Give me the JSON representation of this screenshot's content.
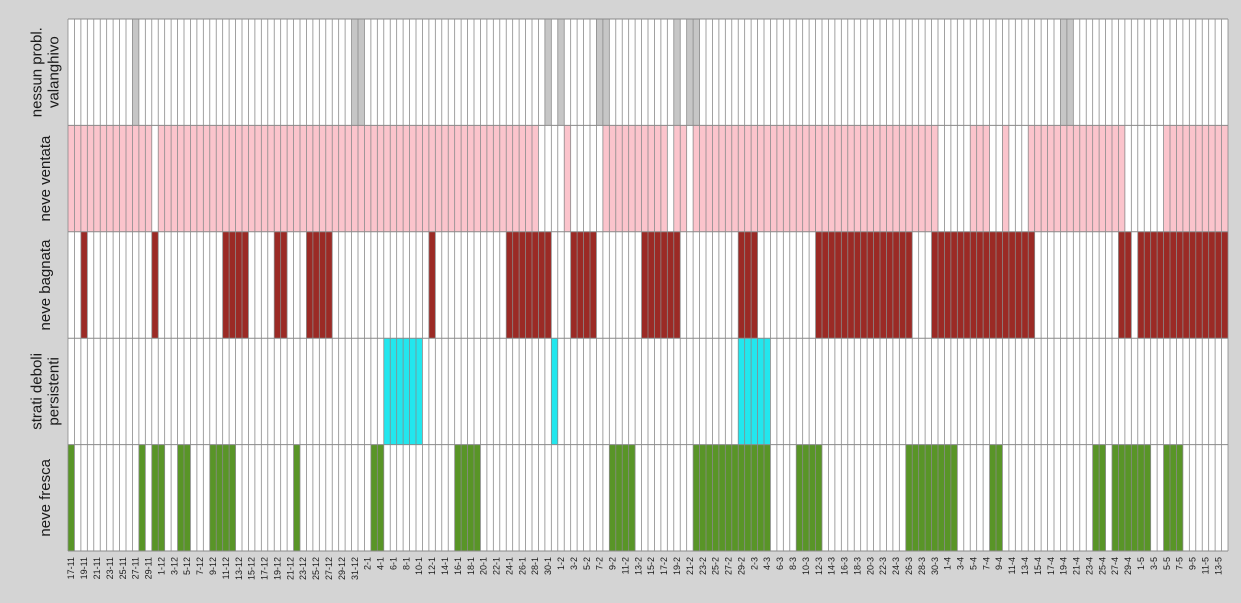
{
  "chart_data": {
    "type": "heatmap",
    "rows": [
      {
        "name": "nessun probl. valanghivo",
        "label_lines": [
          "nessun probl.",
          "valanghivo"
        ],
        "color": "#c6c6c6"
      },
      {
        "name": "neve ventata",
        "label_lines": [
          "neve ventata"
        ],
        "color": "#fbc4cc"
      },
      {
        "name": "neve bagnata",
        "label_lines": [
          "neve bagnata"
        ],
        "color": "#9b2a25"
      },
      {
        "name": "strati deboli persistenti",
        "label_lines": [
          "strati deboli",
          "persistenti"
        ],
        "color": "#22e7ee"
      },
      {
        "name": "neve fresca",
        "label_lines": [
          "neve fresca"
        ],
        "color": "#599527"
      }
    ],
    "start_date": "17-11",
    "end_date": "14-5",
    "tick_labels": [
      "17-11",
      "19-11",
      "21-11",
      "23-11",
      "25-11",
      "27-11",
      "29-11",
      "1-12",
      "3-12",
      "5-12",
      "7-12",
      "9-12",
      "11-12",
      "13-12",
      "15-12",
      "17-12",
      "19-12",
      "21-12",
      "23-12",
      "25-12",
      "27-12",
      "29-12",
      "31-12",
      "2-1",
      "4-1",
      "6-1",
      "8-1",
      "10-1",
      "12-1",
      "14-1",
      "16-1",
      "18-1",
      "20-1",
      "22-1",
      "24-1",
      "26-1",
      "28-1",
      "30-1",
      "1-2",
      "3-2",
      "5-2",
      "7-2",
      "9-2",
      "11-2",
      "13-2",
      "15-2",
      "17-2",
      "19-2",
      "21-2",
      "23-2",
      "25-2",
      "27-2",
      "29-2",
      "2-3",
      "4-3",
      "6-3",
      "8-3",
      "10-3",
      "12-3",
      "14-3",
      "16-3",
      "18-3",
      "20-3",
      "22-3",
      "24-3",
      "26-3",
      "28-3",
      "30-3",
      "1-4",
      "3-4",
      "5-4",
      "7-4",
      "9-4",
      "11-4",
      "13-4",
      "15-4",
      "17-4",
      "19-4",
      "21-4",
      "23-4",
      "25-4",
      "27-4",
      "29-4",
      "1-5",
      "3-5",
      "5-5",
      "7-5",
      "9-5",
      "11-5",
      "13-5"
    ],
    "active_periods": [
      [
        [
          "27-11",
          "27-11"
        ],
        [
          "31-12",
          "1-1"
        ],
        [
          "30-1",
          "30-1"
        ],
        [
          "1-2",
          "1-2"
        ],
        [
          "7-2",
          "8-2"
        ],
        [
          "19-2",
          "19-2"
        ],
        [
          "21-2",
          "22-2"
        ],
        [
          "19-4",
          "20-4"
        ]
      ],
      [
        [
          "17-11",
          "29-11"
        ],
        [
          "1-12",
          "28-1"
        ],
        [
          "2-2",
          "2-2"
        ],
        [
          "8-2",
          "17-2"
        ],
        [
          "19-2",
          "20-2"
        ],
        [
          "22-2",
          "1-3"
        ],
        [
          "2-3",
          "30-3"
        ],
        [
          "5-4",
          "7-4"
        ],
        [
          "10-4",
          "10-4"
        ],
        [
          "14-4",
          "28-4"
        ],
        [
          "5-5",
          "14-5"
        ]
      ],
      [
        [
          "19-11",
          "19-11"
        ],
        [
          "30-11",
          "30-11"
        ],
        [
          "11-12",
          "14-12"
        ],
        [
          "19-12",
          "20-12"
        ],
        [
          "24-12",
          "27-12"
        ],
        [
          "12-1",
          "12-1"
        ],
        [
          "24-1",
          "30-1"
        ],
        [
          "3-2",
          "6-2"
        ],
        [
          "14-2",
          "19-2"
        ],
        [
          "29-2",
          "2-3"
        ],
        [
          "12-3",
          "26-3"
        ],
        [
          "30-3",
          "14-4"
        ],
        [
          "28-4",
          "29-4"
        ],
        [
          "1-5",
          "14-5"
        ]
      ],
      [
        [
          "5-1",
          "10-1"
        ],
        [
          "31-1",
          "31-1"
        ],
        [
          "29-2",
          "4-3"
        ]
      ],
      [
        [
          "17-11",
          "17-11"
        ],
        [
          "28-11",
          "28-11"
        ],
        [
          "30-11",
          "1-12"
        ],
        [
          "4-12",
          "5-12"
        ],
        [
          "9-12",
          "12-12"
        ],
        [
          "22-12",
          "22-12"
        ],
        [
          "3-1",
          "4-1"
        ],
        [
          "16-1",
          "19-1"
        ],
        [
          "9-2",
          "12-2"
        ],
        [
          "22-2",
          "4-3"
        ],
        [
          "9-3",
          "12-3"
        ],
        [
          "26-3",
          "2-4"
        ],
        [
          "8-4",
          "9-4"
        ],
        [
          "24-4",
          "25-4"
        ],
        [
          "27-4",
          "2-5"
        ],
        [
          "5-5",
          "7-5"
        ]
      ]
    ]
  }
}
